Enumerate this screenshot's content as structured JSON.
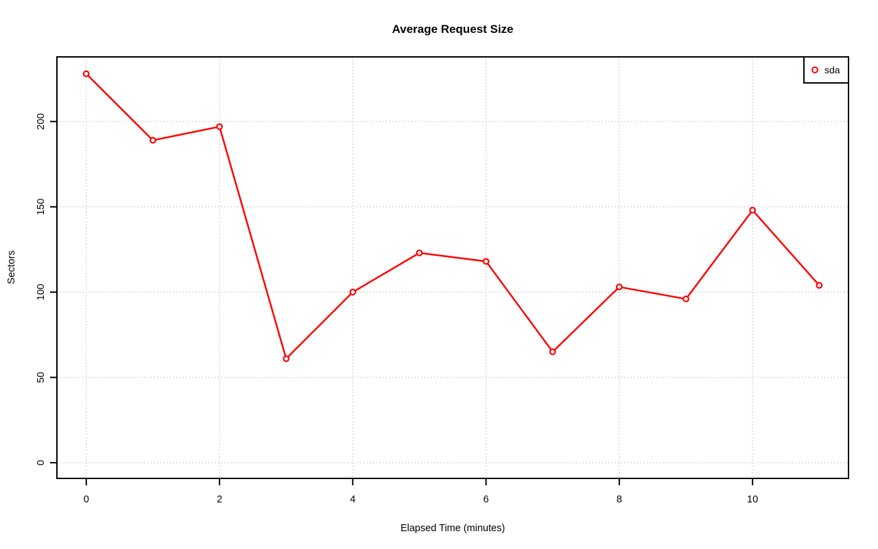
{
  "page": {
    "background_color": "#ffffff"
  },
  "chart_data": {
    "type": "line",
    "title": "Average Request Size",
    "xlabel": "Elapsed Time (minutes)",
    "ylabel": "Sectors",
    "x": [
      0,
      1,
      2,
      3,
      4,
      5,
      6,
      7,
      8,
      9,
      10,
      11
    ],
    "series": [
      {
        "name": "sda",
        "color": "#ff0000",
        "marker": "open-circle",
        "values": [
          228,
          189,
          197,
          61,
          100,
          123,
          118,
          65,
          103,
          96,
          148,
          104
        ]
      }
    ],
    "x_ticks": [
      0,
      2,
      4,
      6,
      8,
      10
    ],
    "y_ticks": [
      0,
      50,
      100,
      150,
      200
    ],
    "xlim": [
      -0.44,
      11.44
    ],
    "ylim": [
      -9.2,
      237.9
    ],
    "grid": "dotted",
    "grid_color": "#c3c3c3",
    "axis_color": "#000000",
    "background": "#ffffff",
    "legend": {
      "position": "top-right",
      "entries": [
        {
          "label": "sda",
          "color": "#ff0000",
          "marker": "open-circle"
        }
      ]
    }
  }
}
